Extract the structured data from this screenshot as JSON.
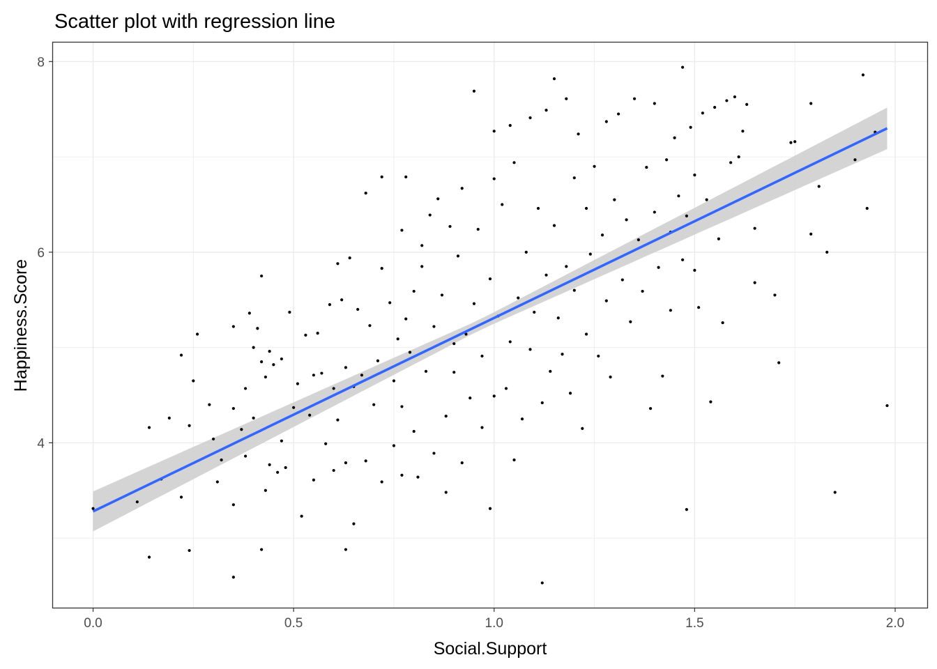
{
  "chart_data": {
    "type": "scatter",
    "title": "Scatter plot with regression line",
    "xlabel": "Social.Support",
    "ylabel": "Happiness.Score",
    "xlim": [
      -0.1,
      2.08
    ],
    "ylim": [
      2.27,
      8.2
    ],
    "x_ticks": [
      0.0,
      0.5,
      1.0,
      1.5,
      2.0
    ],
    "x_tick_labels": [
      "0.0",
      "0.5",
      "1.0",
      "1.5",
      "2.0"
    ],
    "y_ticks": [
      4,
      6,
      8
    ],
    "y_tick_labels": [
      "4",
      "6",
      "8"
    ],
    "grid": true,
    "legend": "none",
    "colors": {
      "points": "#000000",
      "regression_line": "#3366ff",
      "confidence_band": "#cccccc",
      "grid": "#ebebeb",
      "panel_border": "#333333"
    },
    "regression": {
      "intercept": 3.28,
      "slope": 2.03,
      "x_range": [
        0.0,
        1.98
      ],
      "se_band": true
    },
    "points": [
      [
        0.0,
        3.31
      ],
      [
        0.11,
        3.38
      ],
      [
        0.14,
        2.8
      ],
      [
        0.14,
        4.16
      ],
      [
        0.17,
        3.62
      ],
      [
        0.19,
        4.26
      ],
      [
        0.22,
        4.92
      ],
      [
        0.22,
        3.43
      ],
      [
        0.24,
        4.18
      ],
      [
        0.24,
        2.87
      ],
      [
        0.25,
        4.65
      ],
      [
        0.26,
        5.14
      ],
      [
        0.29,
        4.4
      ],
      [
        0.3,
        4.04
      ],
      [
        0.31,
        3.59
      ],
      [
        0.32,
        3.82
      ],
      [
        0.35,
        5.22
      ],
      [
        0.35,
        4.36
      ],
      [
        0.35,
        3.35
      ],
      [
        0.35,
        2.59
      ],
      [
        0.37,
        4.14
      ],
      [
        0.38,
        3.86
      ],
      [
        0.38,
        4.57
      ],
      [
        0.39,
        5.36
      ],
      [
        0.4,
        5.0
      ],
      [
        0.4,
        4.26
      ],
      [
        0.41,
        5.2
      ],
      [
        0.42,
        5.75
      ],
      [
        0.42,
        4.85
      ],
      [
        0.42,
        2.88
      ],
      [
        0.43,
        4.69
      ],
      [
        0.43,
        3.5
      ],
      [
        0.44,
        4.96
      ],
      [
        0.44,
        3.77
      ],
      [
        0.45,
        4.82
      ],
      [
        0.46,
        3.69
      ],
      [
        0.47,
        4.88
      ],
      [
        0.47,
        4.02
      ],
      [
        0.48,
        3.74
      ],
      [
        0.49,
        5.37
      ],
      [
        0.5,
        4.37
      ],
      [
        0.51,
        4.62
      ],
      [
        0.52,
        3.23
      ],
      [
        0.53,
        5.13
      ],
      [
        0.54,
        4.29
      ],
      [
        0.55,
        3.61
      ],
      [
        0.55,
        4.71
      ],
      [
        0.56,
        5.15
      ],
      [
        0.57,
        4.73
      ],
      [
        0.58,
        3.99
      ],
      [
        0.59,
        5.45
      ],
      [
        0.6,
        4.57
      ],
      [
        0.6,
        3.71
      ],
      [
        0.61,
        5.88
      ],
      [
        0.61,
        4.24
      ],
      [
        0.62,
        5.5
      ],
      [
        0.63,
        4.79
      ],
      [
        0.63,
        3.79
      ],
      [
        0.63,
        2.88
      ],
      [
        0.64,
        5.94
      ],
      [
        0.65,
        4.59
      ],
      [
        0.65,
        3.15
      ],
      [
        0.66,
        5.4
      ],
      [
        0.67,
        4.71
      ],
      [
        0.68,
        3.81
      ],
      [
        0.68,
        6.62
      ],
      [
        0.69,
        5.23
      ],
      [
        0.7,
        4.4
      ],
      [
        0.71,
        4.86
      ],
      [
        0.72,
        6.79
      ],
      [
        0.72,
        3.59
      ],
      [
        0.72,
        5.83
      ],
      [
        0.74,
        5.47
      ],
      [
        0.75,
        4.65
      ],
      [
        0.75,
        3.97
      ],
      [
        0.76,
        5.09
      ],
      [
        0.77,
        6.23
      ],
      [
        0.77,
        4.38
      ],
      [
        0.77,
        3.66
      ],
      [
        0.78,
        6.79
      ],
      [
        0.78,
        5.3
      ],
      [
        0.79,
        4.95
      ],
      [
        0.8,
        5.59
      ],
      [
        0.8,
        4.12
      ],
      [
        0.81,
        3.64
      ],
      [
        0.82,
        5.85
      ],
      [
        0.82,
        6.07
      ],
      [
        0.83,
        4.75
      ],
      [
        0.84,
        6.39
      ],
      [
        0.85,
        5.22
      ],
      [
        0.85,
        3.89
      ],
      [
        0.86,
        6.56
      ],
      [
        0.87,
        5.55
      ],
      [
        0.88,
        4.28
      ],
      [
        0.88,
        3.48
      ],
      [
        0.89,
        6.27
      ],
      [
        0.9,
        5.04
      ],
      [
        0.9,
        4.74
      ],
      [
        0.91,
        5.96
      ],
      [
        0.92,
        3.79
      ],
      [
        0.92,
        6.67
      ],
      [
        0.93,
        5.14
      ],
      [
        0.94,
        4.47
      ],
      [
        0.95,
        7.69
      ],
      [
        0.95,
        5.46
      ],
      [
        0.96,
        6.24
      ],
      [
        0.97,
        4.91
      ],
      [
        0.97,
        4.16
      ],
      [
        0.99,
        5.72
      ],
      [
        0.99,
        3.31
      ],
      [
        1.0,
        7.27
      ],
      [
        1.0,
        6.77
      ],
      [
        1.0,
        4.49
      ],
      [
        1.01,
        5.33
      ],
      [
        1.02,
        6.5
      ],
      [
        1.03,
        4.57
      ],
      [
        1.04,
        7.33
      ],
      [
        1.04,
        5.06
      ],
      [
        1.05,
        3.82
      ],
      [
        1.05,
        6.94
      ],
      [
        1.06,
        5.52
      ],
      [
        1.07,
        4.25
      ],
      [
        1.08,
        6.0
      ],
      [
        1.09,
        7.41
      ],
      [
        1.09,
        4.98
      ],
      [
        1.1,
        5.37
      ],
      [
        1.11,
        6.46
      ],
      [
        1.12,
        4.42
      ],
      [
        1.12,
        2.53
      ],
      [
        1.13,
        7.49
      ],
      [
        1.13,
        5.76
      ],
      [
        1.14,
        4.75
      ],
      [
        1.15,
        6.28
      ],
      [
        1.15,
        7.82
      ],
      [
        1.16,
        5.31
      ],
      [
        1.17,
        4.93
      ],
      [
        1.18,
        7.61
      ],
      [
        1.18,
        5.85
      ],
      [
        1.19,
        4.52
      ],
      [
        1.2,
        6.78
      ],
      [
        1.2,
        5.6
      ],
      [
        1.21,
        7.24
      ],
      [
        1.22,
        4.15
      ],
      [
        1.23,
        6.46
      ],
      [
        1.23,
        5.14
      ],
      [
        1.24,
        5.98
      ],
      [
        1.25,
        6.9
      ],
      [
        1.26,
        4.91
      ],
      [
        1.27,
        6.18
      ],
      [
        1.28,
        7.37
      ],
      [
        1.28,
        5.49
      ],
      [
        1.29,
        4.69
      ],
      [
        1.3,
        6.55
      ],
      [
        1.31,
        7.45
      ],
      [
        1.32,
        5.71
      ],
      [
        1.33,
        6.34
      ],
      [
        1.34,
        5.27
      ],
      [
        1.35,
        7.61
      ],
      [
        1.36,
        6.13
      ],
      [
        1.37,
        5.59
      ],
      [
        1.38,
        6.89
      ],
      [
        1.39,
        4.36
      ],
      [
        1.4,
        6.42
      ],
      [
        1.4,
        7.56
      ],
      [
        1.41,
        5.84
      ],
      [
        1.42,
        4.7
      ],
      [
        1.43,
        6.97
      ],
      [
        1.44,
        6.21
      ],
      [
        1.44,
        5.39
      ],
      [
        1.45,
        7.2
      ],
      [
        1.46,
        6.59
      ],
      [
        1.47,
        7.94
      ],
      [
        1.47,
        5.92
      ],
      [
        1.48,
        6.38
      ],
      [
        1.48,
        3.3
      ],
      [
        1.49,
        7.31
      ],
      [
        1.5,
        5.81
      ],
      [
        1.5,
        6.81
      ],
      [
        1.51,
        5.42
      ],
      [
        1.52,
        7.46
      ],
      [
        1.53,
        6.55
      ],
      [
        1.54,
        4.43
      ],
      [
        1.55,
        7.52
      ],
      [
        1.56,
        6.14
      ],
      [
        1.57,
        5.26
      ],
      [
        1.58,
        7.59
      ],
      [
        1.59,
        6.94
      ],
      [
        1.6,
        7.63
      ],
      [
        1.61,
        7.0
      ],
      [
        1.62,
        7.27
      ],
      [
        1.63,
        7.55
      ],
      [
        1.65,
        6.25
      ],
      [
        1.65,
        5.68
      ],
      [
        1.7,
        5.55
      ],
      [
        1.71,
        4.84
      ],
      [
        1.74,
        7.15
      ],
      [
        1.75,
        7.16
      ],
      [
        1.79,
        7.56
      ],
      [
        1.79,
        6.19
      ],
      [
        1.81,
        6.69
      ],
      [
        1.83,
        6.0
      ],
      [
        1.85,
        3.48
      ],
      [
        1.9,
        6.97
      ],
      [
        1.92,
        7.86
      ],
      [
        1.93,
        6.46
      ],
      [
        1.95,
        7.26
      ],
      [
        1.98,
        4.39
      ]
    ]
  }
}
